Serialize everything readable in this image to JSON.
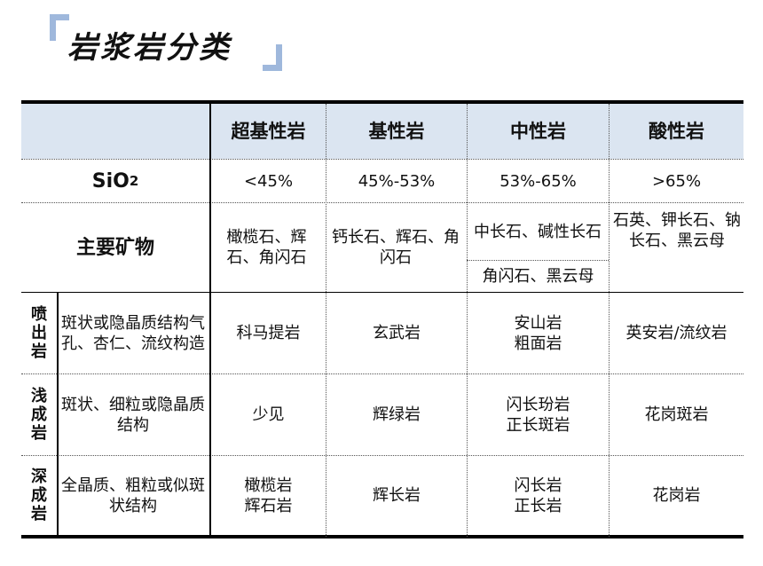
{
  "title": "岩浆岩分类",
  "table": {
    "headers": [
      "超基性岩",
      "基性岩",
      "中性岩",
      "酸性岩"
    ],
    "sio2": {
      "label_main": "SiO",
      "label_sub": "2",
      "values": [
        "<45%",
        "45%-53%",
        "53%-65%",
        ">65%"
      ]
    },
    "minerals": {
      "label": "主要矿物",
      "ultrabasic": "橄榄石、辉石、角闪石",
      "basic": "钙长石、辉石、角闪石",
      "intermediate_top": "中长石、碱性长石",
      "intermediate_bottom": "角闪石、黑云母",
      "acid": "石英、钾长石、钠长石、黑云母"
    },
    "rows": [
      {
        "category": "喷出岩",
        "structure": "斑状或隐晶质结构气孔、杏仁、流纹构造",
        "ultrabasic": "科马提岩",
        "basic": "玄武岩",
        "intermediate_1": "安山岩",
        "intermediate_2": "粗面岩",
        "acid": "英安岩/流纹岩"
      },
      {
        "category": "浅成岩",
        "structure": "斑状、细粒或隐晶质结构",
        "ultrabasic": "少见",
        "basic": "辉绿岩",
        "intermediate_1": "闪长玢岩",
        "intermediate_2": "正长斑岩",
        "acid": "花岗斑岩"
      },
      {
        "category": "深成岩",
        "structure": "全晶质、粗粒或似斑状结构",
        "ultrabasic_1": "橄榄岩",
        "ultrabasic_2": "辉石岩",
        "basic": "辉长岩",
        "intermediate_1": "闪长岩",
        "intermediate_2": "正长岩",
        "acid": "花岗岩"
      }
    ]
  }
}
